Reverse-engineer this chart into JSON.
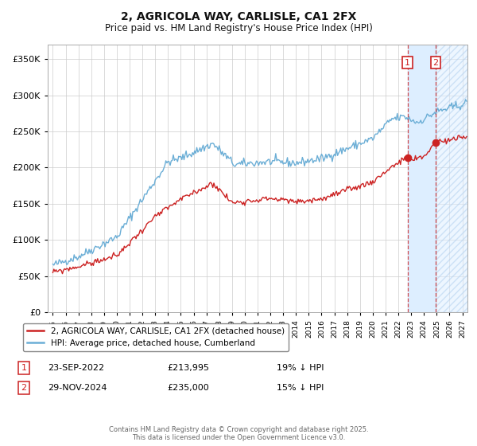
{
  "title": "2, AGRICOLA WAY, CARLISLE, CA1 2FX",
  "subtitle": "Price paid vs. HM Land Registry's House Price Index (HPI)",
  "legend_line1": "2, AGRICOLA WAY, CARLISLE, CA1 2FX (detached house)",
  "legend_line2": "HPI: Average price, detached house, Cumberland",
  "annotation1_label": "1",
  "annotation1_date": "23-SEP-2022",
  "annotation1_price": "£213,995",
  "annotation1_note": "19% ↓ HPI",
  "annotation2_label": "2",
  "annotation2_date": "29-NOV-2024",
  "annotation2_price": "£235,000",
  "annotation2_note": "15% ↓ HPI",
  "footer": "Contains HM Land Registry data © Crown copyright and database right 2025.\nThis data is licensed under the Open Government Licence v3.0.",
  "hpi_color": "#6baed6",
  "price_color": "#cc2222",
  "vline_color": "#cc2222",
  "shade_color": "#ddeeff",
  "background_color": "#ffffff",
  "grid_color": "#cccccc",
  "ylim": [
    0,
    370000
  ],
  "yticks": [
    0,
    50000,
    100000,
    150000,
    200000,
    250000,
    300000,
    350000
  ],
  "xlim_start": 1994.6,
  "xlim_end": 2027.4,
  "marker1_year": 2022.72,
  "marker2_year": 2024.91,
  "marker1_price_paid": 213995,
  "marker2_price_paid": 235000,
  "marker1_hpi": 265000,
  "marker2_hpi": 278000
}
